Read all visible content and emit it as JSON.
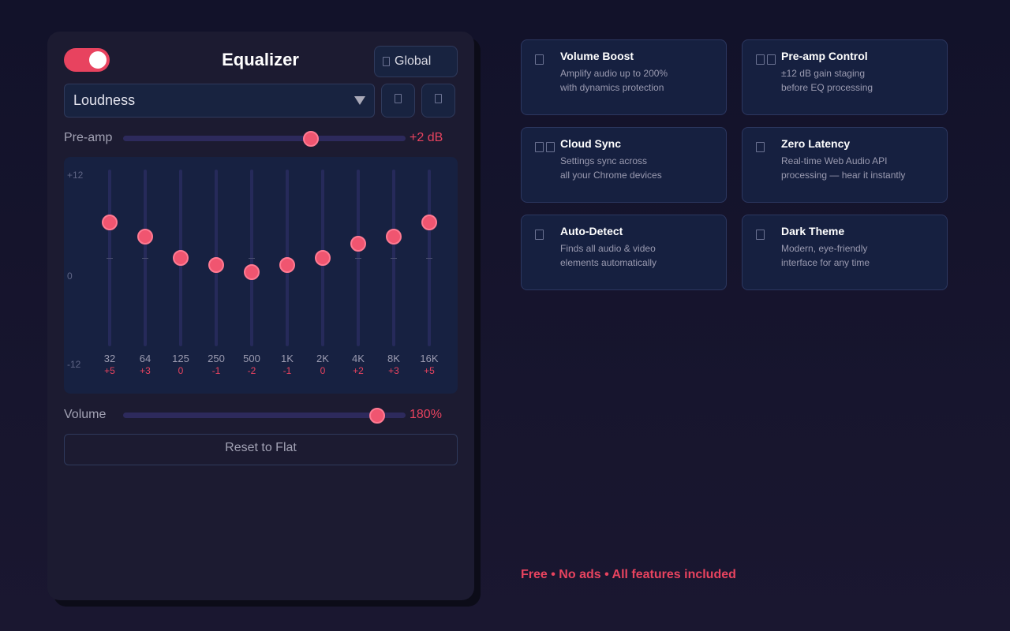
{
  "header": {
    "title": "Equalizer",
    "power_on": true,
    "scope_label": "Global"
  },
  "preset": {
    "selected": "Loudness"
  },
  "preamp": {
    "label": "Pre-amp",
    "value_db": 2,
    "range_db": [
      -12,
      12
    ],
    "value_label": "+2 dB"
  },
  "eq": {
    "scale_top": "+12",
    "scale_mid": "0",
    "scale_bottom": "-12",
    "range_db": [
      -12,
      12
    ],
    "bands": [
      {
        "freq": "32",
        "gain": 5,
        "gain_label": "+5"
      },
      {
        "freq": "64",
        "gain": 3,
        "gain_label": "+3"
      },
      {
        "freq": "125",
        "gain": 0,
        "gain_label": "0"
      },
      {
        "freq": "250",
        "gain": -1,
        "gain_label": "-1"
      },
      {
        "freq": "500",
        "gain": -2,
        "gain_label": "-2"
      },
      {
        "freq": "1K",
        "gain": -1,
        "gain_label": "-1"
      },
      {
        "freq": "2K",
        "gain": 0,
        "gain_label": "0"
      },
      {
        "freq": "4K",
        "gain": 2,
        "gain_label": "+2"
      },
      {
        "freq": "8K",
        "gain": 3,
        "gain_label": "+3"
      },
      {
        "freq": "16K",
        "gain": 5,
        "gain_label": "+5"
      }
    ]
  },
  "volume": {
    "label": "Volume",
    "percent": 180,
    "max_percent": 200,
    "value_label": "180%"
  },
  "reset_label": "Reset to Flat",
  "features": [
    {
      "icon_glyphs": 1,
      "title": "Volume Boost",
      "line1": "Amplify audio up to 200%",
      "line2": "with dynamics protection"
    },
    {
      "icon_glyphs": 2,
      "title": "Pre-amp Control",
      "line1": "±12 dB gain staging",
      "line2": "before EQ processing"
    },
    {
      "icon_glyphs": 2,
      "title": "Cloud Sync",
      "line1": "Settings sync across",
      "line2": "all your Chrome devices"
    },
    {
      "icon_glyphs": 1,
      "title": "Zero Latency",
      "line1": "Real-time Web Audio API",
      "line2": "processing — hear it instantly"
    },
    {
      "icon_glyphs": 1,
      "title": "Auto-Detect",
      "line1": "Finds all audio & video",
      "line2": "elements automatically"
    },
    {
      "icon_glyphs": 1,
      "title": "Dark Theme",
      "line1": "Modern, eye-friendly",
      "line2": "interface for any time"
    }
  ],
  "footer": "Free • No ads • All features included",
  "colors": {
    "accent": "#e8435f",
    "panel": "#1c1b31",
    "card": "#162040"
  }
}
